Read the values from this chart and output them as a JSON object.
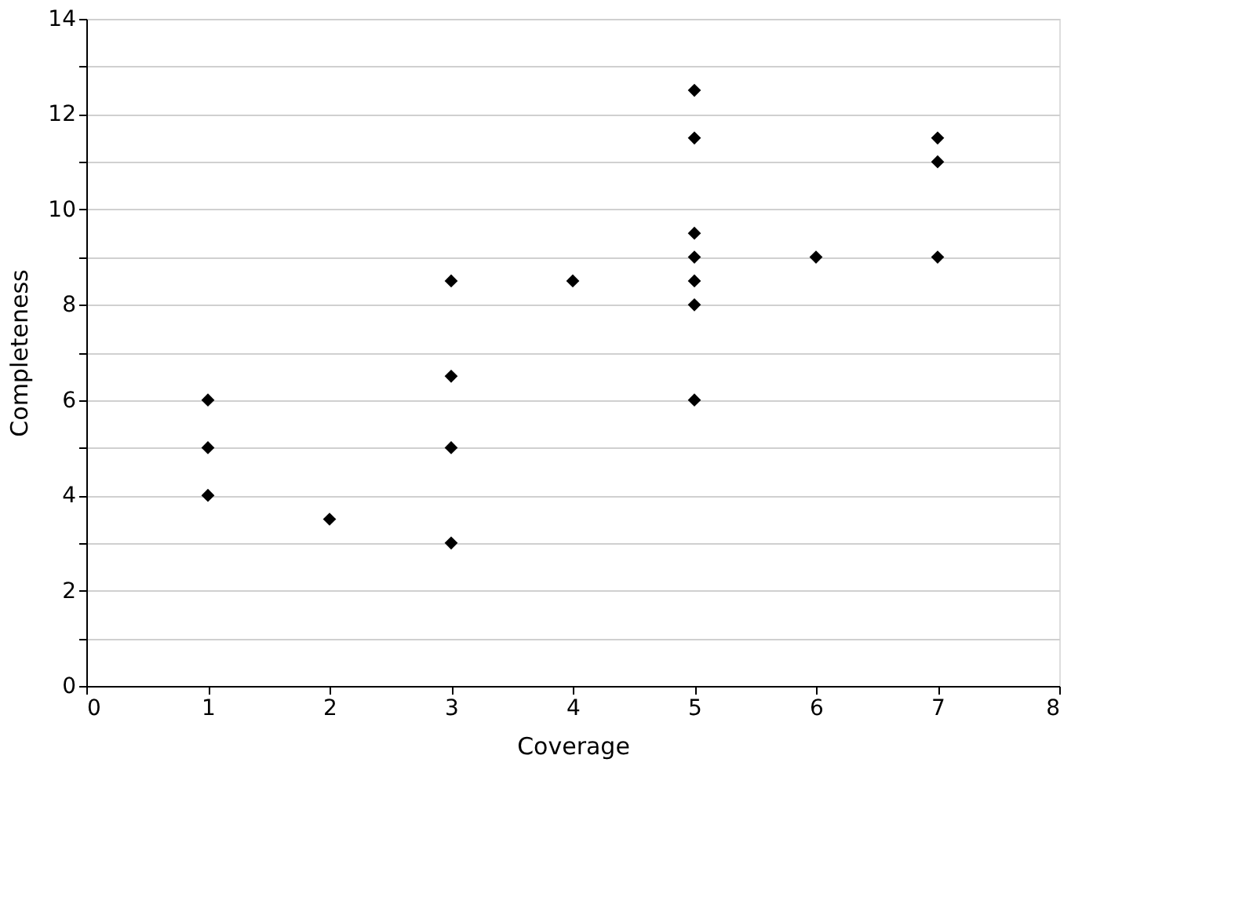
{
  "chart_data": {
    "type": "scatter",
    "xlabel": "Coverage",
    "ylabel": "Completeness",
    "x": [
      1,
      1,
      1,
      2,
      3,
      3,
      3,
      3,
      4,
      5,
      5,
      5,
      5,
      5,
      5,
      5,
      6,
      7,
      7,
      7
    ],
    "series": [
      {
        "color": "#000000",
        "values": [
          6,
          5,
          4,
          3.5,
          8.5,
          6.5,
          5,
          3,
          8.5,
          12.5,
          11.5,
          9.5,
          9,
          8.5,
          8,
          6,
          9,
          11.5,
          11,
          9
        ]
      }
    ],
    "xlim": [
      0,
      8
    ],
    "xticks": [
      0,
      1,
      2,
      3,
      4,
      5,
      6,
      7,
      8
    ],
    "ylim": [
      0,
      14
    ],
    "yticks": [
      0,
      {
        "value": 1,
        "label": null
      },
      2,
      {
        "value": 3,
        "label": null
      },
      4,
      {
        "value": 5,
        "label": null
      },
      6,
      {
        "value": 7,
        "label": null
      },
      8,
      {
        "value": 9,
        "label": null
      },
      10,
      {
        "value": 11,
        "label": null
      },
      12,
      {
        "value": 13,
        "label": null
      },
      14
    ],
    "grid": "y",
    "marker": "diamond"
  }
}
